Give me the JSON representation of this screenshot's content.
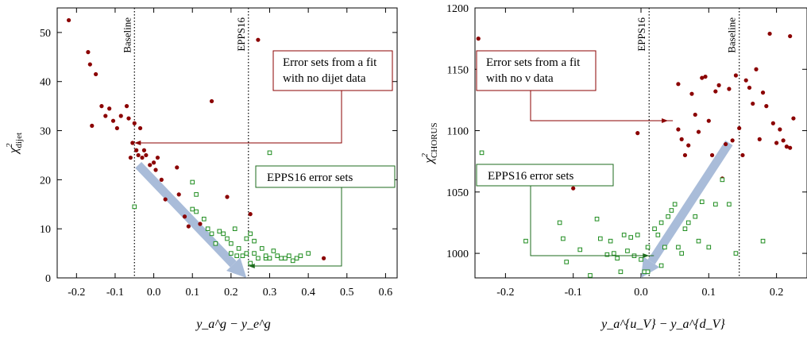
{
  "chart_data": [
    {
      "type": "scatter",
      "xlim": [
        -0.25,
        0.63
      ],
      "ylim": [
        0,
        55
      ],
      "x_ticks": [
        "-0.2",
        "-0.1",
        "0.0",
        "0.1",
        "0.2",
        "0.3",
        "0.4",
        "0.5",
        "0.6"
      ],
      "x_tick_values": [
        -0.2,
        -0.1,
        0.0,
        0.1,
        0.2,
        0.3,
        0.4,
        0.5,
        0.6
      ],
      "y_ticks": [
        "0",
        "10",
        "20",
        "30",
        "40",
        "50"
      ],
      "y_tick_values": [
        0,
        10,
        20,
        30,
        40,
        50
      ],
      "ylabel_main": "χ",
      "ylabel_sup": "2",
      "ylabel_sub": "dijet",
      "xlabel": "y_a^g − y_e^g",
      "vlines": [
        {
          "x": -0.05,
          "label": "Baseline"
        },
        {
          "x": 0.245,
          "label": "EPPS16"
        }
      ],
      "annotations": [
        {
          "lines": [
            "Error sets from a fit",
            "with no dijet data"
          ],
          "color": "#8b0000",
          "arrow_to": [
            -0.05,
            27.5
          ]
        },
        {
          "lines": [
            "EPPS16 error sets"
          ],
          "color": "#1e6b1e",
          "arrow_to": [
            0.245,
            2.5
          ]
        }
      ],
      "series": [
        {
          "name": "Error sets from a fit with no dijet data",
          "color": "#8b0000",
          "marker": "dot",
          "x": [
            -0.22,
            -0.17,
            -0.165,
            -0.16,
            -0.15,
            -0.135,
            -0.125,
            -0.115,
            -0.105,
            -0.095,
            -0.085,
            -0.07,
            -0.065,
            -0.06,
            -0.055,
            -0.05,
            -0.045,
            -0.04,
            -0.035,
            -0.03,
            -0.025,
            -0.02,
            -0.01,
            0.0,
            0.005,
            0.01,
            0.02,
            0.03,
            0.06,
            0.065,
            0.08,
            0.09,
            0.12,
            0.15,
            0.19,
            0.25,
            0.27,
            0.44
          ],
          "y": [
            52.5,
            46,
            43.5,
            31,
            41.5,
            35,
            33,
            34.5,
            32,
            30.5,
            33,
            35,
            32.5,
            24.5,
            27.5,
            31.5,
            26,
            25,
            30.5,
            24.5,
            26,
            25,
            23,
            23.5,
            22,
            24.5,
            20,
            16,
            22.5,
            17,
            12.5,
            10.5,
            11,
            36,
            16.5,
            13,
            48.5,
            4
          ]
        },
        {
          "name": "EPPS16 error sets",
          "color": "#1e8c1e",
          "marker": "open-square",
          "x": [
            -0.05,
            0.1,
            0.1,
            0.11,
            0.11,
            0.13,
            0.14,
            0.15,
            0.16,
            0.17,
            0.18,
            0.19,
            0.2,
            0.2,
            0.21,
            0.22,
            0.23,
            0.24,
            0.24,
            0.25,
            0.25,
            0.26,
            0.27,
            0.28,
            0.29,
            0.29,
            0.3,
            0.31,
            0.32,
            0.33,
            0.34,
            0.35,
            0.36,
            0.37,
            0.38,
            0.4,
            0.3,
            0.26,
            0.215
          ],
          "y": [
            14.5,
            19.5,
            14,
            17,
            13.5,
            12,
            10,
            9,
            7,
            9.5,
            9,
            8,
            7,
            5,
            10,
            6,
            4.5,
            8,
            5,
            3,
            9,
            5,
            4,
            6,
            4,
            4.5,
            4,
            5.5,
            4.5,
            4,
            4,
            4.5,
            3.5,
            4,
            4.5,
            5,
            25.5,
            7.5,
            4.5
          ]
        }
      ]
    },
    {
      "type": "scatter",
      "xlim": [
        -0.245,
        0.245
      ],
      "ylim": [
        980,
        1200
      ],
      "x_ticks": [
        "-0.2",
        "-0.1",
        "0.0",
        "0.1",
        "0.2"
      ],
      "x_tick_values": [
        -0.2,
        -0.1,
        0.0,
        0.1,
        0.2
      ],
      "y_ticks": [
        "1000",
        "1050",
        "1100",
        "1150",
        "1200"
      ],
      "y_tick_values": [
        1000,
        1050,
        1100,
        1150,
        1200
      ],
      "ylabel_main": "χ",
      "ylabel_sup": "2",
      "ylabel_sub": "CHORUS",
      "xlabel": "y_a^{u_V} − y_a^{d_V}",
      "vlines": [
        {
          "x": 0.012,
          "label": "EPPS16"
        },
        {
          "x": 0.145,
          "label": "Baseline"
        }
      ],
      "annotations": [
        {
          "lines": [
            "Error sets from a fit",
            "with no ν data"
          ],
          "color": "#8b0000",
          "arrow_to": [
            0.04,
            1108
          ]
        },
        {
          "lines": [
            "EPPS16 error sets"
          ],
          "color": "#1e6b1e",
          "arrow_to": [
            0.012,
            998
          ]
        }
      ],
      "series": [
        {
          "name": "Error sets from a fit with no ν data",
          "color": "#8b0000",
          "marker": "dot",
          "x": [
            -0.24,
            -0.1,
            -0.005,
            0.055,
            0.055,
            0.06,
            0.065,
            0.07,
            0.075,
            0.08,
            0.085,
            0.09,
            0.095,
            0.1,
            0.105,
            0.11,
            0.115,
            0.12,
            0.125,
            0.13,
            0.135,
            0.14,
            0.145,
            0.15,
            0.155,
            0.16,
            0.165,
            0.17,
            0.175,
            0.18,
            0.185,
            0.19,
            0.195,
            0.2,
            0.205,
            0.21,
            0.215,
            0.22,
            0.22,
            0.225
          ],
          "y": [
            1175,
            1053,
            1098,
            1138,
            1101,
            1093,
            1080,
            1088,
            1130,
            1113,
            1099,
            1143,
            1144,
            1108,
            1080,
            1132,
            1137,
            1061,
            1089,
            1134,
            1092,
            1145,
            1102,
            1080,
            1141,
            1135,
            1122,
            1150,
            1093,
            1131,
            1120,
            1179,
            1106,
            1090,
            1101,
            1092,
            1087,
            1177,
            1086,
            1110
          ]
        },
        {
          "name": "EPPS16 error sets",
          "color": "#1e8c1e",
          "marker": "open-square",
          "x": [
            -0.235,
            -0.17,
            -0.12,
            -0.115,
            -0.11,
            -0.09,
            -0.075,
            -0.065,
            -0.06,
            -0.05,
            -0.045,
            -0.04,
            -0.035,
            -0.03,
            -0.025,
            -0.02,
            -0.015,
            -0.01,
            -0.005,
            0.0,
            0.005,
            0.01,
            0.02,
            0.025,
            0.03,
            0.035,
            0.04,
            0.045,
            0.05,
            0.055,
            0.06,
            0.065,
            0.07,
            0.08,
            0.085,
            0.09,
            0.1,
            0.11,
            0.12,
            0.13,
            0.14,
            0.18,
            0.01,
            0.03
          ],
          "y": [
            1082,
            1010,
            1025,
            1012,
            993,
            1003,
            982,
            1028,
            1012,
            999,
            1010,
            1000,
            996,
            985,
            1015,
            1002,
            1013,
            998,
            1015,
            995,
            985,
            1005,
            1020,
            1015,
            1025,
            1005,
            1030,
            1035,
            1040,
            1005,
            1000,
            1020,
            1025,
            1030,
            1010,
            1042,
            1005,
            1040,
            1060,
            1040,
            1000,
            1010,
            985,
            990
          ]
        }
      ]
    }
  ]
}
